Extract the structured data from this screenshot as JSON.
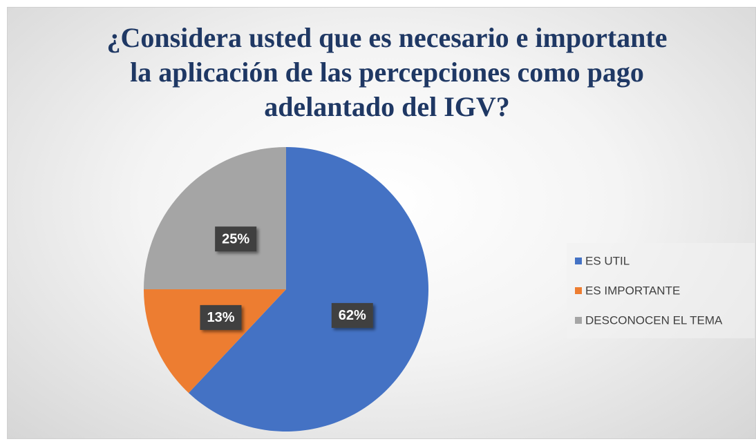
{
  "chart_data": {
    "type": "pie",
    "title": "¿Considera usted que es necesario e importante la aplicación de las percepciones como pago adelantado del IGV?",
    "categories": [
      "ES UTIL",
      "ES IMPORTANTE",
      "DESCONOCEN EL TEMA"
    ],
    "values": [
      62,
      13,
      25
    ],
    "value_labels": [
      "62%",
      "13%",
      "25%"
    ],
    "colors": [
      "#4472c4",
      "#ed7d31",
      "#a5a5a5"
    ],
    "legend": "right"
  }
}
